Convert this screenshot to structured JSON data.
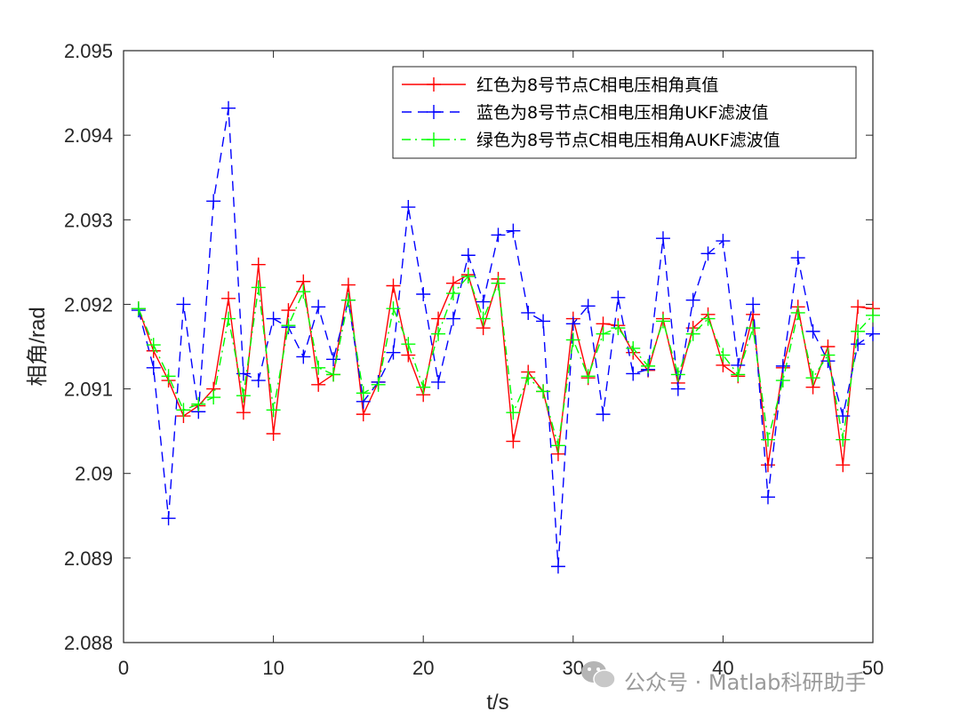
{
  "chart_data": {
    "type": "line",
    "xlabel": "t/s",
    "ylabel": "相角/rad",
    "xlim": [
      0,
      50
    ],
    "ylim": [
      2.088,
      2.095
    ],
    "xticks": [
      0,
      10,
      20,
      30,
      40,
      50
    ],
    "yticks": [
      2.088,
      2.089,
      2.09,
      2.091,
      2.092,
      2.093,
      2.094,
      2.095
    ],
    "ytick_labels": [
      "2.088",
      "2.089",
      "2.09",
      "2.091",
      "2.092",
      "2.093",
      "2.094",
      "2.095"
    ],
    "grid": false,
    "legend_position": "top-right",
    "x": [
      1,
      2,
      3,
      4,
      5,
      6,
      7,
      8,
      9,
      10,
      11,
      12,
      13,
      14,
      15,
      16,
      17,
      18,
      19,
      20,
      21,
      22,
      23,
      24,
      25,
      26,
      27,
      28,
      29,
      30,
      31,
      32,
      33,
      34,
      35,
      36,
      37,
      38,
      39,
      40,
      41,
      42,
      43,
      44,
      45,
      46,
      47,
      48,
      49,
      50
    ],
    "series": [
      {
        "name": "红色为8号节点C相电压相角真值",
        "color": "#ff0000",
        "style": "solid",
        "values": [
          2.09195,
          2.09145,
          2.0911,
          2.09068,
          2.0908,
          2.091,
          2.09207,
          2.09072,
          2.09247,
          2.09047,
          2.09193,
          2.09227,
          2.09105,
          2.09117,
          2.09223,
          2.0907,
          2.09108,
          2.09222,
          2.0914,
          2.09093,
          2.09183,
          2.09225,
          2.09235,
          2.09172,
          2.0923,
          2.09038,
          2.0912,
          2.09097,
          2.09023,
          2.09183,
          2.09113,
          2.09177,
          2.09175,
          2.09143,
          2.09122,
          2.09183,
          2.09107,
          2.09172,
          2.09188,
          2.09128,
          2.09115,
          2.09188,
          2.0901,
          2.09125,
          2.09197,
          2.09102,
          2.0915,
          2.0901,
          2.09197,
          2.09195
        ]
      },
      {
        "name": "蓝色为8号节点C相电压相角UKF滤波值",
        "color": "#0000ff",
        "style": "dashed",
        "values": [
          2.09193,
          2.09125,
          2.08947,
          2.092,
          2.09073,
          2.09322,
          2.09432,
          2.09118,
          2.0911,
          2.09183,
          2.09173,
          2.09138,
          2.09197,
          2.09135,
          2.09205,
          2.09085,
          2.09108,
          2.09143,
          2.09315,
          2.09212,
          2.09108,
          2.09183,
          2.09258,
          2.09203,
          2.09282,
          2.09287,
          2.0919,
          2.0918,
          2.0889,
          2.09177,
          2.09198,
          2.0907,
          2.09208,
          2.09118,
          2.09123,
          2.09278,
          2.091,
          2.09205,
          2.0926,
          2.09275,
          2.09128,
          2.092,
          2.08972,
          2.09127,
          2.09255,
          2.09168,
          2.09133,
          2.09068,
          2.09153,
          2.09165
        ]
      },
      {
        "name": "绿色为8号节点C相电压相角AUKF滤波值",
        "color": "#00ff00",
        "style": "dashdot",
        "values": [
          2.09195,
          2.09152,
          2.09115,
          2.09075,
          2.09082,
          2.0909,
          2.09183,
          2.09092,
          2.0922,
          2.09075,
          2.09175,
          2.09215,
          2.09125,
          2.09117,
          2.09205,
          2.09095,
          2.09105,
          2.09195,
          2.09153,
          2.09102,
          2.09165,
          2.09213,
          2.09233,
          2.09183,
          2.09225,
          2.09072,
          2.09113,
          2.09097,
          2.09033,
          2.09158,
          2.09115,
          2.09165,
          2.09172,
          2.09148,
          2.09127,
          2.0918,
          2.09117,
          2.09165,
          2.09183,
          2.0914,
          2.09117,
          2.09172,
          2.0904,
          2.0911,
          2.0919,
          2.09113,
          2.0914,
          2.0904,
          2.09168,
          2.09187
        ]
      }
    ]
  },
  "watermark": {
    "text": "公众号 · Matlab科研助手"
  }
}
